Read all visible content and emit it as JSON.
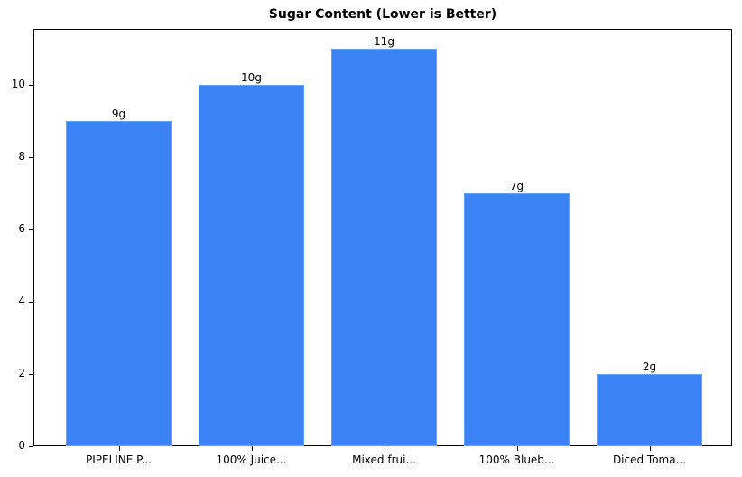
{
  "chart_data": {
    "type": "bar",
    "title": "Sugar Content (Lower is Better)",
    "xlabel": "",
    "ylabel": "",
    "categories": [
      "PIPELINE P...",
      "100% Juice...",
      "Mixed frui...",
      "100% Blueb...",
      "Diced Toma..."
    ],
    "values": [
      9,
      10,
      11,
      7,
      2
    ],
    "data_labels": [
      "9g",
      "10g",
      "11g",
      "7g",
      "2g"
    ],
    "ylim": [
      0,
      11.55
    ],
    "yticks": [
      0,
      2,
      4,
      6,
      8,
      10
    ],
    "grid": false,
    "legend": null,
    "bar_color": "#3b82f6"
  },
  "yticks_labels": [
    "0",
    "2",
    "4",
    "6",
    "8",
    "10"
  ]
}
